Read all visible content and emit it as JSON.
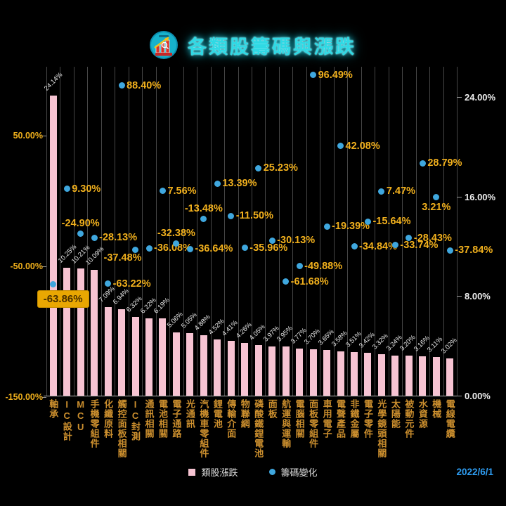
{
  "header": {
    "title": "各類股籌碼與漲跌"
  },
  "footer": {
    "date": "2022/6/1"
  },
  "chart_data": {
    "type": "bar",
    "title": "各類股籌碼與漲跌",
    "grid": "vertical",
    "legend_position": "bottom",
    "categories": [
      "軸承",
      "IC設計",
      "MCU",
      "手機零組件",
      "化纖原料",
      "觸控面板相關",
      "IC封測",
      "通訊相關",
      "電池相關",
      "電子通路",
      "光通訊",
      "汽機車零組件",
      "鋰電池",
      "傳輸介面",
      "物聯網",
      "磷酸鐵鋰電池",
      "面板",
      "航運與運輸",
      "電腦相關",
      "面板零組件",
      "車用電子",
      "電聲產品",
      "非鐵金屬",
      "電子零件",
      "光學鏡頭相關",
      "太陽能",
      "被動元件",
      "水資源",
      "機械",
      "電線電纜"
    ],
    "series": [
      {
        "name": "類股漲跌",
        "type": "bar",
        "axis": "right",
        "color": "#f6c3d2",
        "values": [
          24.14,
          10.25,
          10.21,
          10.09,
          7.09,
          6.94,
          6.32,
          6.22,
          6.19,
          5.06,
          5.05,
          4.88,
          4.52,
          4.41,
          4.26,
          4.05,
          3.97,
          3.95,
          3.77,
          3.7,
          3.65,
          3.58,
          3.51,
          3.42,
          3.32,
          3.24,
          3.2,
          3.16,
          3.11,
          3.02
        ]
      },
      {
        "name": "籌碼變化",
        "type": "scatter",
        "axis": "left",
        "color": "#3fa7de",
        "values": [
          -63.86,
          9.3,
          -24.9,
          -28.13,
          -63.22,
          88.4,
          -37.48,
          -36.08,
          7.56,
          -32.38,
          -36.64,
          -13.48,
          13.39,
          -11.5,
          -35.96,
          25.23,
          -30.13,
          -61.68,
          -49.88,
          96.49,
          -19.39,
          42.08,
          -34.84,
          -15.64,
          7.47,
          -33.74,
          -28.43,
          28.79,
          3.21,
          -37.84
        ]
      }
    ],
    "point_label_pos": [
      "box",
      "right",
      "above",
      "right",
      "right",
      "right",
      "left",
      "right",
      "right",
      "above",
      "right",
      "above",
      "right",
      "right",
      "right",
      "right",
      "right",
      "right",
      "right",
      "right",
      "right",
      "right",
      "right",
      "right",
      "right",
      "right",
      "right",
      "right",
      "below",
      "right"
    ],
    "left_axis": {
      "ticks": [
        50,
        -50,
        -150
      ],
      "tick_labels": [
        "50.00%",
        "-50.00%",
        "-150.00%"
      ],
      "min": -150,
      "max": 103
    },
    "right_axis": {
      "ticks": [
        24,
        16,
        8,
        0
      ],
      "tick_labels": [
        "24.00%",
        "16.00%",
        "8.00%",
        "0.00%"
      ],
      "min": 0,
      "max": 26.4
    },
    "highlight": {
      "category": "軸承",
      "series": "籌碼變化",
      "label": "-63.86%"
    },
    "legend": [
      {
        "label": "類股漲跌",
        "marker": "square",
        "color": "#f6c3d2"
      },
      {
        "label": "籌碼變化",
        "marker": "dot",
        "color": "#3fa7de"
      }
    ]
  }
}
